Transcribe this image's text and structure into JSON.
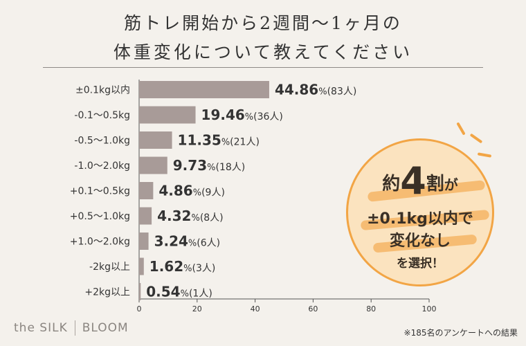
{
  "title_line1": "筋トレ開始から2週間〜1ヶ月の",
  "title_line2": "体重変化について教えてください",
  "chart_data": {
    "type": "bar",
    "orientation": "horizontal",
    "categories": [
      "±0.1kg以内",
      "-0.1〜0.5kg",
      "-0.5〜1.0kg",
      "-1.0〜2.0kg",
      "+0.1〜0.5kg",
      "+0.5〜1.0kg",
      "+1.0〜2.0kg",
      "-2kg以上",
      "+2kg以上"
    ],
    "values": [
      44.86,
      19.46,
      11.35,
      9.73,
      4.86,
      4.32,
      3.24,
      1.62,
      0.54
    ],
    "value_labels": [
      "44.86",
      "19.46",
      "11.35",
      "9.73",
      "4.86",
      "4.32",
      "3.24",
      "1.62",
      "0.54"
    ],
    "counts": [
      "(83人)",
      "(36人)",
      "(21人)",
      "(18人)",
      "(9人)",
      "(8人)",
      "(6人)",
      "(3人)",
      "(1人)"
    ],
    "percent_sign": "%",
    "xlim": [
      0,
      100
    ],
    "xticks": [
      "0",
      "20",
      "40",
      "60",
      "80",
      "100"
    ],
    "bar_color": "#a89b98",
    "grid": false
  },
  "badge": {
    "prefix": "約",
    "number": "4",
    "suffix": "割",
    "particle": "が",
    "line2": "±0.1kg以内で",
    "line3": "変化なし",
    "line4": "を選択！",
    "fill_color": "#fbe3bf",
    "accent_color": "#f2a545"
  },
  "brand": {
    "left": "the SILK",
    "right": "BLOOM"
  },
  "footnote": "※185名のアンケートへの結果"
}
